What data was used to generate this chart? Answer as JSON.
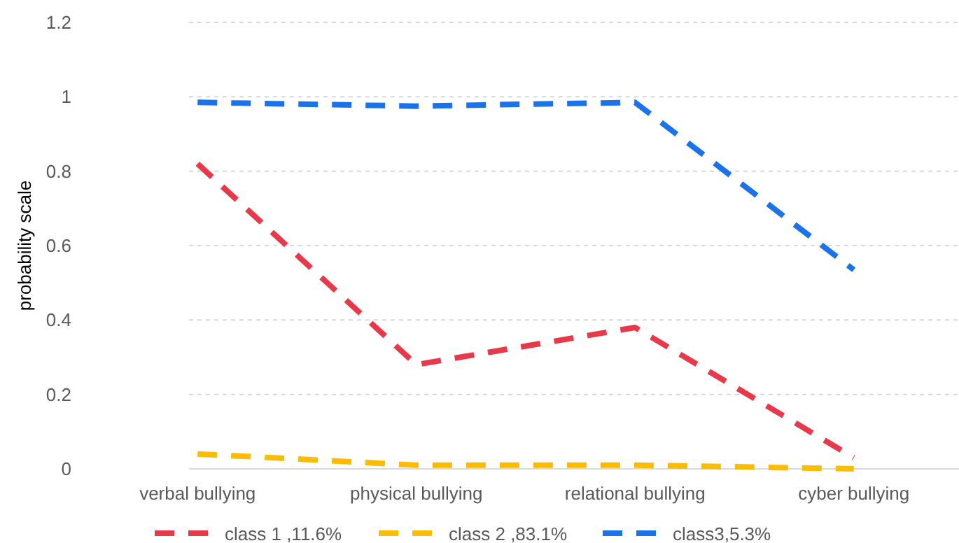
{
  "chart_data": {
    "type": "line",
    "ylabel": "probability  scale",
    "categories": [
      "verbal bullying",
      "physical bullying",
      "relational bullying",
      "cyber bullying"
    ],
    "series": [
      {
        "name": "class 1 ,11.6%",
        "color": "#e8394b",
        "values": [
          0.82,
          0.28,
          0.38,
          0.03
        ]
      },
      {
        "name": "class 2 ,83.1%",
        "color": "#fbbc05",
        "values": [
          0.04,
          0.01,
          0.01,
          0.0
        ]
      },
      {
        "name": "class3,5.3%",
        "color": "#1a73e8",
        "values": [
          0.985,
          0.975,
          0.985,
          0.535
        ]
      }
    ],
    "ylim": [
      0,
      1.2
    ],
    "yticks": [
      0,
      0.2,
      0.4,
      0.6,
      0.8,
      1,
      1.2
    ],
    "grid": "y",
    "legend": "bottom",
    "line_style": "dashed",
    "marker": "none"
  }
}
